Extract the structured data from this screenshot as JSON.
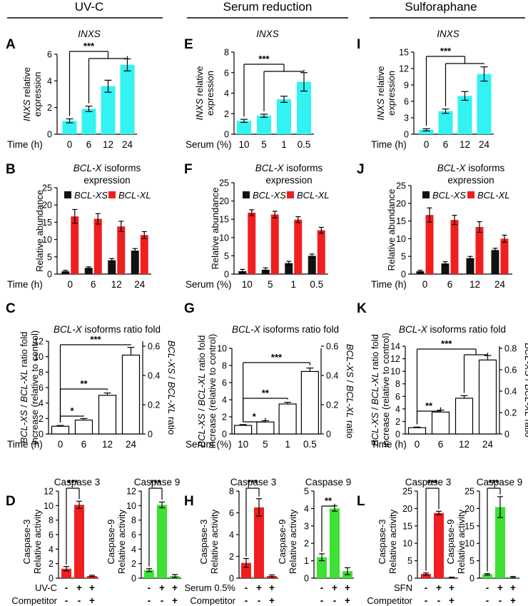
{
  "columns": [
    {
      "title": "UV-C"
    },
    {
      "title": "Serum reduction"
    },
    {
      "title": "Sulforaphane"
    }
  ],
  "colors": {
    "cyan": "#33f2f2",
    "red": "#ef1f1f",
    "black": "#111111",
    "green": "#3de033",
    "white": "#ffffff"
  },
  "chart_data": [
    {
      "id": "A",
      "type": "bar",
      "title": "INXS",
      "ylabel": "INXS relative\nexpression",
      "xaxis_label": "Time (h)",
      "categories": [
        "0",
        "6",
        "12",
        "24"
      ],
      "values": [
        1.0,
        1.9,
        3.6,
        5.2
      ],
      "errors": [
        0.15,
        0.2,
        0.45,
        0.45
      ],
      "ylim": [
        0,
        6
      ],
      "yticks": [
        0,
        2,
        4,
        6
      ],
      "yticklabels": [
        "0",
        "2",
        "4",
        "6"
      ],
      "color": "cyan",
      "brackets": [
        {
          "from": 0,
          "to": [
            1,
            3
          ],
          "label": "***"
        }
      ]
    },
    {
      "id": "E",
      "type": "bar",
      "title": "INXS",
      "ylabel": "INXS relative\nexpression",
      "xaxis_label": "Serum (%)",
      "categories": [
        "10",
        "5",
        "1",
        "0.5"
      ],
      "values": [
        1.3,
        1.8,
        3.4,
        5.1
      ],
      "errors": [
        0.15,
        0.15,
        0.3,
        0.9
      ],
      "ylim": [
        0,
        8
      ],
      "yticks": [
        0,
        2,
        4,
        6,
        8
      ],
      "yticklabels": [
        "0",
        "2",
        "4",
        "6",
        "8"
      ],
      "color": "cyan",
      "brackets": [
        {
          "from": 0,
          "to": [
            1,
            3
          ],
          "label": "***"
        }
      ]
    },
    {
      "id": "I",
      "type": "bar",
      "title": "INXS",
      "ylabel": "INXS relative\nexpression",
      "xaxis_label": "Time (h)",
      "categories": [
        "0",
        "6",
        "12",
        "24"
      ],
      "values": [
        0.8,
        4.2,
        7.0,
        11.0
      ],
      "errors": [
        0.2,
        0.4,
        0.8,
        1.3
      ],
      "ylim": [
        0,
        15
      ],
      "yticks": [
        0,
        3,
        6,
        9,
        12,
        15
      ],
      "yticklabels": [
        "0",
        "3",
        "6",
        "9",
        "12",
        "15"
      ],
      "color": "cyan",
      "brackets": [
        {
          "from": 0,
          "to": [
            1,
            3
          ],
          "label": "***"
        }
      ]
    },
    {
      "id": "B",
      "type": "bar",
      "title": "BCL-X isoforms\nexpression",
      "ylabel": "Relative abundance",
      "xaxis_label": "Time (h)",
      "categories": [
        "0",
        "6",
        "12",
        "24"
      ],
      "series": [
        {
          "name": "BCL-XS",
          "color": "black",
          "values": [
            0.8,
            1.8,
            4.0,
            6.8
          ],
          "errors": [
            0.3,
            0.3,
            0.5,
            0.6
          ]
        },
        {
          "name": "BCL-XL",
          "color": "red",
          "values": [
            16.7,
            16.0,
            13.8,
            11.3
          ],
          "errors": [
            2.0,
            1.5,
            1.5,
            1.0
          ]
        }
      ],
      "ylim": [
        0,
        25
      ],
      "yticks": [
        0,
        5,
        10,
        15,
        20,
        25
      ],
      "yticklabels": [
        "0",
        "5",
        "10",
        "15",
        "20",
        "25"
      ]
    },
    {
      "id": "F",
      "type": "bar",
      "title": "BCL-X isoforms\nexpression",
      "ylabel": "Relative abundance",
      "xaxis_label": "Serum (%)",
      "categories": [
        "10",
        "5",
        "1",
        "0.5"
      ],
      "series": [
        {
          "name": "BCL-XS",
          "color": "black",
          "values": [
            0.8,
            1.2,
            3.0,
            5.0
          ],
          "errors": [
            0.5,
            0.5,
            0.5,
            0.5
          ]
        },
        {
          "name": "BCL-XL",
          "color": "red",
          "values": [
            16.8,
            16.3,
            14.9,
            12.0
          ],
          "errors": [
            0.8,
            0.9,
            0.8,
            0.8
          ]
        }
      ],
      "ylim": [
        0,
        25
      ],
      "yticks": [
        0,
        5,
        10,
        15,
        20,
        25
      ],
      "yticklabels": [
        "0",
        "5",
        "10",
        "15",
        "20",
        "25"
      ]
    },
    {
      "id": "J",
      "type": "bar",
      "title": "BCL-X isoforms\nexpression",
      "ylabel": "Relative abundance",
      "xaxis_label": "Time (h)",
      "categories": [
        "0",
        "6",
        "12",
        "24"
      ],
      "series": [
        {
          "name": "BCL-XS",
          "color": "black",
          "values": [
            0.8,
            3.0,
            4.5,
            6.8
          ],
          "errors": [
            0.3,
            0.5,
            0.5,
            0.5
          ]
        },
        {
          "name": "BCL-XL",
          "color": "red",
          "values": [
            16.7,
            15.3,
            13.3,
            10.0
          ],
          "errors": [
            2.0,
            1.3,
            1.5,
            1.0
          ]
        }
      ],
      "ylim": [
        0,
        25
      ],
      "yticks": [
        0,
        5,
        10,
        15,
        20,
        25
      ],
      "yticklabels": [
        "0",
        "5",
        "10",
        "15",
        "20",
        "25"
      ]
    },
    {
      "id": "C",
      "type": "bar",
      "title": "BCL-X isoforms ratio fold",
      "ylabel": "BCL-XS / BCL-XL ratio fold\nincrease (relative to control)",
      "y2label": "BCL-XS / BCL-XL ratio",
      "xaxis_label": "Time (h)",
      "categories": [
        "0",
        "6",
        "12",
        "24"
      ],
      "values": [
        1.0,
        1.8,
        5.0,
        10.2
      ],
      "errors": [
        0.1,
        0.2,
        0.3,
        1.0
      ],
      "ylim": [
        0,
        12
      ],
      "yticks": [
        0,
        2,
        4,
        6,
        8,
        10,
        12
      ],
      "yticklabels": [
        "0",
        "2",
        "4",
        "6",
        "8",
        "10",
        "12"
      ],
      "y2ticklabels": [
        "0",
        "0.2",
        "0.4",
        "0.6"
      ],
      "color": "white",
      "brackets": [
        {
          "from": 0,
          "to": [
            1
          ],
          "label": "*"
        },
        {
          "from": 0,
          "to": [
            2
          ],
          "label": "**"
        },
        {
          "from": 0,
          "to": [
            3
          ],
          "label": "***"
        }
      ]
    },
    {
      "id": "G",
      "type": "bar",
      "title": "BCL-X isoforms ratio fold",
      "ylabel": "BCL-XS / BCL-XL ratio fold\nincrease (relative to control)",
      "y2label": "BCL-XS / BCL-XL ratio",
      "xaxis_label": "Serum (%)",
      "categories": [
        "10",
        "5",
        "1",
        "0.5"
      ],
      "values": [
        1.0,
        1.4,
        3.5,
        7.3
      ],
      "errors": [
        0.1,
        0.15,
        0.2,
        0.4
      ],
      "ylim": [
        0,
        10
      ],
      "yticks": [
        0,
        2,
        4,
        6,
        8,
        10
      ],
      "yticklabels": [
        "0",
        "2",
        "4",
        "6",
        "8",
        "10"
      ],
      "y2ticklabels": [
        "0",
        "0.2",
        "0.4",
        "0.6"
      ],
      "color": "white",
      "brackets": [
        {
          "from": 0,
          "to": [
            1
          ],
          "label": "*"
        },
        {
          "from": 0,
          "to": [
            2
          ],
          "label": "**"
        },
        {
          "from": 0,
          "to": [
            3
          ],
          "label": "***"
        }
      ]
    },
    {
      "id": "K",
      "type": "bar",
      "title": "BCL-X isoforms ratio fold",
      "ylabel": "BCL-XS / BCL-XL ratio fold\nincrease (relative to control)",
      "y2label": "BCL-XS / BCL-XL ratio",
      "xaxis_label": "Time (h)",
      "categories": [
        "0",
        "6",
        "12",
        "24"
      ],
      "values": [
        1.0,
        3.5,
        5.7,
        11.8
      ],
      "errors": [
        0.1,
        0.3,
        0.4,
        0.7
      ],
      "ylim": [
        0,
        14
      ],
      "yticks": [
        0,
        2,
        4,
        6,
        8,
        10,
        12,
        14
      ],
      "yticklabels": [
        "0",
        "2",
        "4",
        "6",
        "8",
        "10",
        "12",
        "14"
      ],
      "y2ticklabels": [
        "0",
        "0.2",
        "0.4",
        "0.6",
        "0.8"
      ],
      "color": "white",
      "brackets": [
        {
          "from": 0,
          "to": [
            1
          ],
          "label": "**"
        },
        {
          "from": 0,
          "to": [
            2,
            3
          ],
          "label": "***"
        }
      ]
    },
    {
      "id": "D3",
      "type": "bar",
      "panel": "D",
      "title": "Caspase 3",
      "ylabel": "Caspase-3\nRelative activity",
      "row1": "UV-C",
      "row2": "Competitor",
      "row1signs": [
        "-",
        "+",
        "+"
      ],
      "row2signs": [
        "-",
        "-",
        "+"
      ],
      "values": [
        1.3,
        10.1,
        0.3
      ],
      "errors": [
        0.3,
        0.5,
        0.1
      ],
      "ylim": [
        0,
        12
      ],
      "yticks": [
        0,
        2,
        4,
        6,
        8,
        10,
        12
      ],
      "yticklabels": [
        "0",
        "2",
        "4",
        "6",
        "8",
        "10",
        "12"
      ],
      "color": "red",
      "brackets": [
        {
          "from": 0,
          "to": [
            1
          ],
          "label": "***"
        }
      ]
    },
    {
      "id": "D9",
      "type": "bar",
      "panel": "D",
      "title": "Caspase 9",
      "ylabel": "Caspase-9\nRelative activity",
      "row1signs": [
        "-",
        "+",
        "+"
      ],
      "row2signs": [
        "-",
        "-",
        "+"
      ],
      "values": [
        1.1,
        10.1,
        0.3
      ],
      "errors": [
        0.2,
        0.4,
        0.2
      ],
      "ylim": [
        0,
        12
      ],
      "yticks": [
        0,
        2,
        4,
        6,
        8,
        10,
        12
      ],
      "yticklabels": [
        "0",
        "2",
        "4",
        "6",
        "8",
        "10",
        "12"
      ],
      "color": "green",
      "brackets": [
        {
          "from": 0,
          "to": [
            1
          ],
          "label": "***"
        }
      ]
    },
    {
      "id": "H3",
      "type": "bar",
      "panel": "H",
      "title": "Caspase 3",
      "ylabel": "Caspase-3\nRelative activity",
      "row1": "Serum 0.5%",
      "row2": "Competitor",
      "row1signs": [
        "-",
        "+",
        "+"
      ],
      "row2signs": [
        "-",
        "-",
        "+"
      ],
      "values": [
        1.4,
        6.5,
        0.2
      ],
      "errors": [
        0.4,
        0.8,
        0.1
      ],
      "ylim": [
        0,
        8
      ],
      "yticks": [
        0,
        2,
        4,
        6,
        8
      ],
      "yticklabels": [
        "0",
        "2",
        "4",
        "6",
        "8"
      ],
      "color": "red",
      "brackets": [
        {
          "from": 0,
          "to": [
            1
          ],
          "label": "***"
        }
      ]
    },
    {
      "id": "H9",
      "type": "bar",
      "panel": "H",
      "title": "Caspase 9",
      "ylabel": "Caspase-9\nRelative activity",
      "row1signs": [
        "-",
        "+",
        "+"
      ],
      "row2signs": [
        "-",
        "-",
        "+"
      ],
      "values": [
        1.2,
        4.0,
        0.4
      ],
      "errors": [
        0.2,
        0.15,
        0.2
      ],
      "ylim": [
        0,
        5
      ],
      "yticks": [
        0,
        1,
        2,
        3,
        4,
        5
      ],
      "yticklabels": [
        "0",
        "1",
        "2",
        "3",
        "4",
        "5"
      ],
      "color": "green",
      "brackets": [
        {
          "from": 0,
          "to": [
            1
          ],
          "label": "**"
        }
      ]
    },
    {
      "id": "L3",
      "type": "bar",
      "panel": "L",
      "title": "Caspase 3",
      "ylabel": "Caspase-3\nRelative activity",
      "row1": "SFN",
      "row2": "Competitor",
      "row1signs": [
        "-",
        "+",
        "+"
      ],
      "row2signs": [
        "-",
        "-",
        "+"
      ],
      "values": [
        1.2,
        18.7,
        0.2
      ],
      "errors": [
        0.3,
        0.5,
        0.1
      ],
      "ylim": [
        0,
        25
      ],
      "yticks": [
        0,
        5,
        10,
        15,
        20,
        25
      ],
      "yticklabels": [
        "0",
        "5",
        "10",
        "15",
        "20",
        "25"
      ],
      "color": "red",
      "brackets": [
        {
          "from": 0,
          "to": [
            1
          ],
          "label": "***"
        }
      ]
    },
    {
      "id": "L9",
      "type": "bar",
      "panel": "L",
      "title": "Caspase 9",
      "ylabel": "Caspase-9\nRelative activity",
      "row1signs": [
        "-",
        "+",
        "+"
      ],
      "row2signs": [
        "-",
        "-",
        "+"
      ],
      "values": [
        1.1,
        20.4,
        0.3
      ],
      "errors": [
        0.2,
        3.0,
        0.2
      ],
      "ylim": [
        0,
        25
      ],
      "yticks": [
        0,
        5,
        10,
        15,
        20,
        25
      ],
      "yticklabels": [
        "0",
        "5",
        "10",
        "15",
        "20",
        "25"
      ],
      "color": "green",
      "brackets": [
        {
          "from": 0,
          "to": [
            1
          ],
          "label": "***"
        }
      ]
    }
  ]
}
